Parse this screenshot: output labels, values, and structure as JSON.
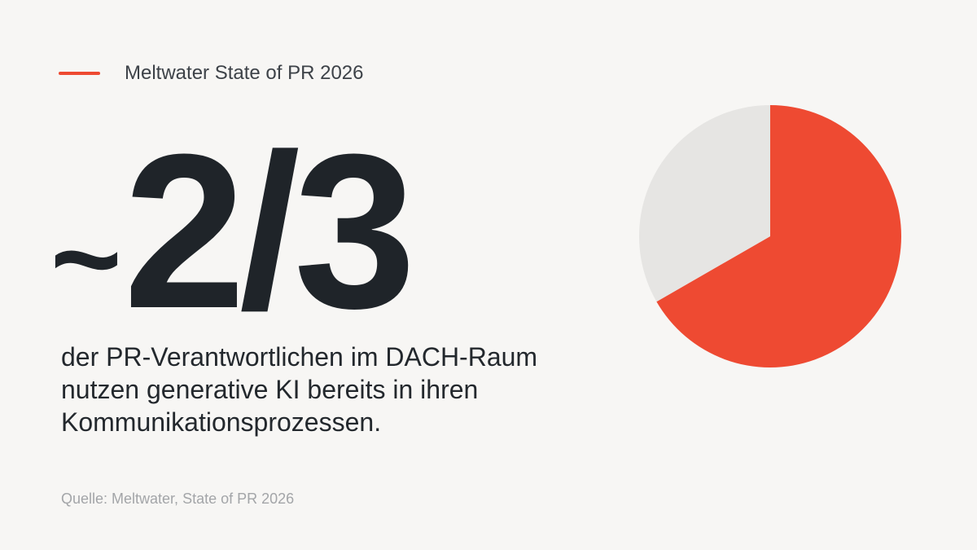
{
  "header": {
    "accent_color": "#ee4a32",
    "title": "Meltwater State of PR 2026"
  },
  "stat": {
    "prefix": "~",
    "value": "2/3"
  },
  "description": "der PR-Verantwortlichen im DACH-Raum nutzen generative KI bereits in ihren Kommunikationsprozessen.",
  "source": "Quelle: Meltwater, State of PR 2026",
  "chart_data": {
    "type": "pie",
    "title": "",
    "start_angle_deg": 0,
    "direction": "clockwise",
    "slices": [
      {
        "value": 66.7,
        "color": "#ee4a32"
      },
      {
        "value": 33.3,
        "color": "#e6e5e3"
      }
    ]
  }
}
